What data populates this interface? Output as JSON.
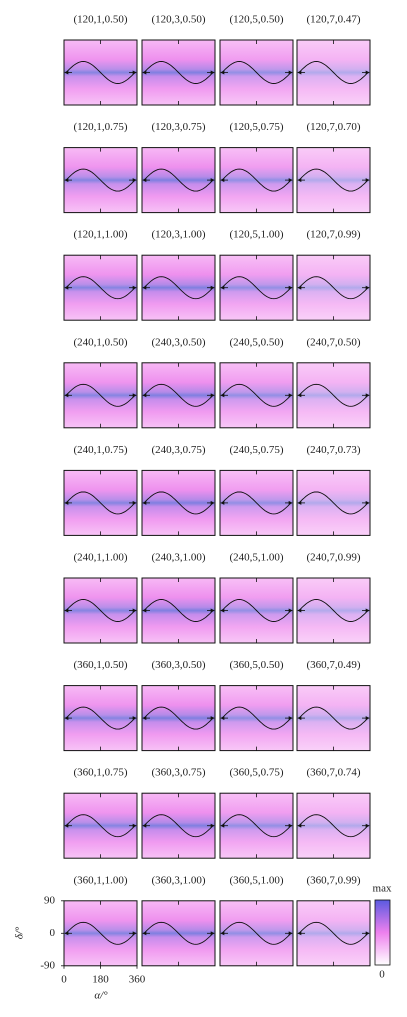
{
  "panels": [
    [
      "(120,1,0.50)",
      "(120,3,0.50)",
      "(120,5,0.50)",
      "(120,7,0.47)"
    ],
    [
      "(120,1,0.75)",
      "(120,3,0.75)",
      "(120,5,0.75)",
      "(120,7,0.70)"
    ],
    [
      "(120,1,1.00)",
      "(120,3,1.00)",
      "(120,5,1.00)",
      "(120,7,0.99)"
    ],
    [
      "(240,1,0.50)",
      "(240,3,0.50)",
      "(240,5,0.50)",
      "(240,7,0.50)"
    ],
    [
      "(240,1,0.75)",
      "(240,3,0.75)",
      "(240,5,0.75)",
      "(240,7,0.73)"
    ],
    [
      "(240,1,1.00)",
      "(240,3,1.00)",
      "(240,5,1.00)",
      "(240,7,0.99)"
    ],
    [
      "(360,1,0.50)",
      "(360,3,0.50)",
      "(360,5,0.50)",
      "(360,7,0.49)"
    ],
    [
      "(360,1,0.75)",
      "(360,3,0.75)",
      "(360,5,0.75)",
      "(360,7,0.74)"
    ],
    [
      "(360,1,1.00)",
      "(360,3,1.00)",
      "(360,5,1.00)",
      "(360,7,0.99)"
    ]
  ],
  "axes": {
    "xlabel": "α/°",
    "ylabel": "δ/°",
    "xlim": [
      0,
      360
    ],
    "ylim": [
      -90,
      90
    ],
    "xticks": [
      0,
      180,
      360
    ],
    "yticks": [
      90,
      0,
      -90
    ]
  },
  "colorbar": {
    "labels": [
      "max",
      "0"
    ]
  }
}
